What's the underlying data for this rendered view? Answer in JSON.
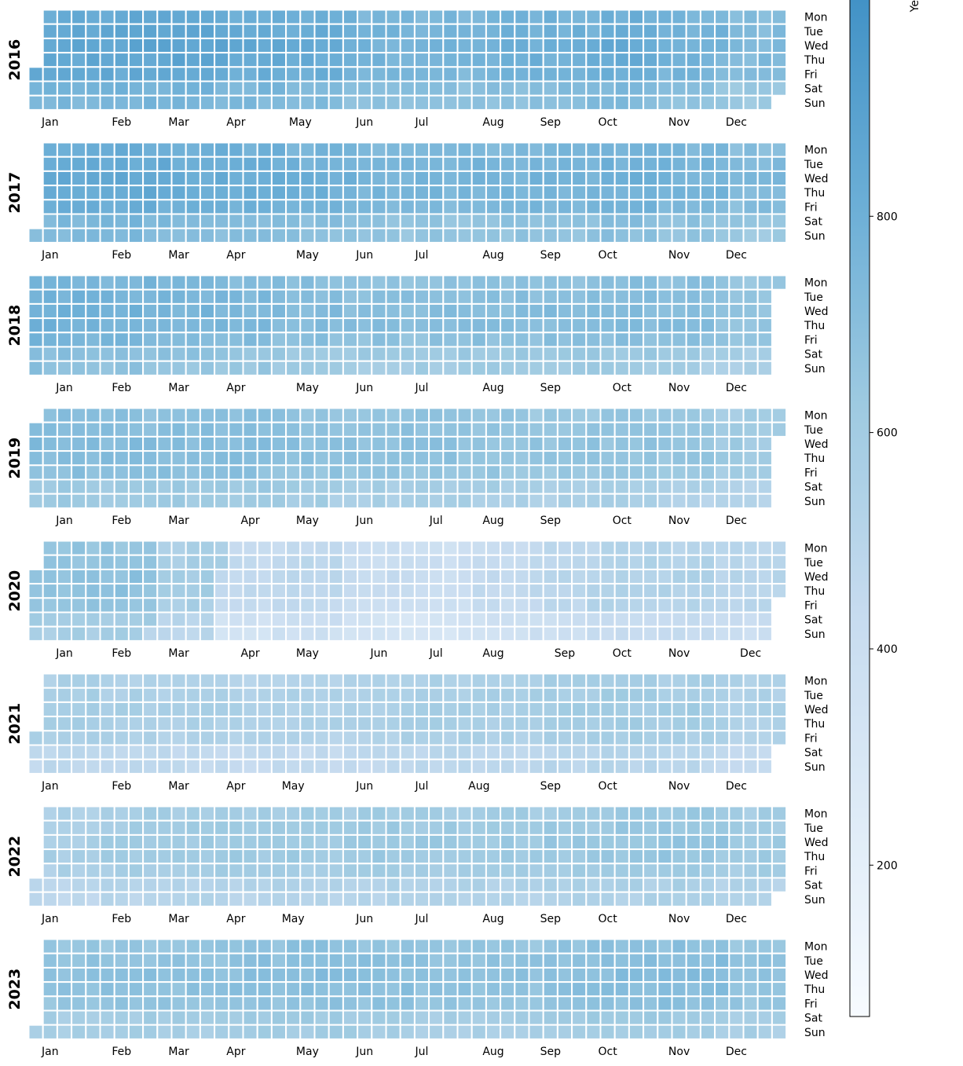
{
  "chart_data": {
    "type": "heatmap",
    "subtype": "calendar",
    "colormap": "Blues",
    "color_range": [
      60,
      1000
    ],
    "colors": [
      "#f7fbff",
      "#deebf7",
      "#c6dbef",
      "#9ecae1",
      "#6baed6",
      "#4292c6"
    ],
    "cell_stroke": "#ffffff",
    "day_labels": [
      "Mon",
      "Tue",
      "Wed",
      "Thu",
      "Fri",
      "Sat",
      "Sun"
    ],
    "colorbar": {
      "label": "Ye",
      "ticks": [
        200,
        400,
        600,
        800
      ],
      "tick_labels": [
        "200",
        "400",
        "600",
        "800"
      ],
      "orientation": "vertical",
      "placement": "right"
    },
    "grid": false,
    "legend": "none",
    "years": [
      {
        "year": 2016,
        "label": "2016",
        "start_weekday": 4,
        "days": 366,
        "monthly_level": [
          820,
          830,
          840,
          810,
          800,
          740,
          740,
          760,
          770,
          800,
          760,
          700
        ],
        "month_ticks": [
          {
            "label": "Jan",
            "week": 1.5
          },
          {
            "label": "Feb",
            "week": 6.5
          },
          {
            "label": "Mar",
            "week": 10.5
          },
          {
            "label": "Apr",
            "week": 14.5
          },
          {
            "label": "May",
            "week": 19
          },
          {
            "label": "Jun",
            "week": 23.5
          },
          {
            "label": "Jul",
            "week": 27.5
          },
          {
            "label": "Aug",
            "week": 32.5
          },
          {
            "label": "Sep",
            "week": 36.5
          },
          {
            "label": "Oct",
            "week": 40.5
          },
          {
            "label": "Nov",
            "week": 45.5
          },
          {
            "label": "Dec",
            "week": 49.5
          }
        ]
      },
      {
        "year": 2017,
        "label": "2017",
        "start_weekday": 6,
        "days": 365,
        "monthly_level": [
          800,
          810,
          790,
          780,
          760,
          730,
          730,
          740,
          740,
          760,
          740,
          700
        ],
        "month_ticks": [
          {
            "label": "Jan",
            "week": 1.5
          },
          {
            "label": "Feb",
            "week": 6.5
          },
          {
            "label": "Mar",
            "week": 10.5
          },
          {
            "label": "Apr",
            "week": 14.5
          },
          {
            "label": "May",
            "week": 19.5
          },
          {
            "label": "Jun",
            "week": 23.5
          },
          {
            "label": "Jul",
            "week": 27.5
          },
          {
            "label": "Aug",
            "week": 32.5
          },
          {
            "label": "Sep",
            "week": 36.5
          },
          {
            "label": "Oct",
            "week": 40.5
          },
          {
            "label": "Nov",
            "week": 45.5
          },
          {
            "label": "Dec",
            "week": 49.5
          }
        ]
      },
      {
        "year": 2018,
        "label": "2018",
        "start_weekday": 0,
        "days": 365,
        "monthly_level": [
          760,
          750,
          730,
          720,
          690,
          670,
          670,
          680,
          680,
          690,
          680,
          640
        ],
        "month_ticks": [
          {
            "label": "Jan",
            "week": 2.5
          },
          {
            "label": "Feb",
            "week": 6.5
          },
          {
            "label": "Mar",
            "week": 10.5
          },
          {
            "label": "Apr",
            "week": 14.5
          },
          {
            "label": "May",
            "week": 19.5
          },
          {
            "label": "Jun",
            "week": 23.5
          },
          {
            "label": "Jul",
            "week": 27.5
          },
          {
            "label": "Aug",
            "week": 32.5
          },
          {
            "label": "Sep",
            "week": 36.5
          },
          {
            "label": "Oct",
            "week": 41.5
          },
          {
            "label": "Nov",
            "week": 45.5
          },
          {
            "label": "Dec",
            "week": 49.5
          }
        ]
      },
      {
        "year": 2019,
        "label": "2019",
        "start_weekday": 1,
        "days": 365,
        "monthly_level": [
          690,
          680,
          680,
          680,
          660,
          640,
          650,
          640,
          620,
          630,
          620,
          580
        ],
        "month_ticks": [
          {
            "label": "Jan",
            "week": 2.5
          },
          {
            "label": "Feb",
            "week": 6.5
          },
          {
            "label": "Mar",
            "week": 10.5
          },
          {
            "label": "Apr",
            "week": 15.5
          },
          {
            "label": "May",
            "week": 19.5
          },
          {
            "label": "Jun",
            "week": 23.5
          },
          {
            "label": "Jul",
            "week": 28.5
          },
          {
            "label": "Aug",
            "week": 32.5
          },
          {
            "label": "Sep",
            "week": 36.5
          },
          {
            "label": "Oct",
            "week": 41.5
          },
          {
            "label": "Nov",
            "week": 45.5
          },
          {
            "label": "Dec",
            "week": 49.5
          }
        ]
      },
      {
        "year": 2020,
        "label": "2020",
        "start_weekday": 2,
        "days": 366,
        "monthly_level": [
          650,
          650,
          560,
          420,
          450,
          390,
          370,
          420,
          460,
          500,
          500,
          470
        ],
        "month_ticks": [
          {
            "label": "Jan",
            "week": 2.5
          },
          {
            "label": "Feb",
            "week": 6.5
          },
          {
            "label": "Mar",
            "week": 10.5
          },
          {
            "label": "Apr",
            "week": 15.5
          },
          {
            "label": "May",
            "week": 19.5
          },
          {
            "label": "Jun",
            "week": 24.5
          },
          {
            "label": "Jul",
            "week": 28.5
          },
          {
            "label": "Aug",
            "week": 32.5
          },
          {
            "label": "Sep",
            "week": 37.5
          },
          {
            "label": "Oct",
            "week": 41.5
          },
          {
            "label": "Nov",
            "week": 45.5
          },
          {
            "label": "Dec",
            "week": 50.5
          }
        ]
      },
      {
        "year": 2021,
        "label": "2021",
        "start_weekday": 4,
        "days": 365,
        "monthly_level": [
          540,
          530,
          520,
          510,
          510,
          520,
          540,
          540,
          560,
          570,
          560,
          520
        ],
        "month_ticks": [
          {
            "label": "Jan",
            "week": 1.5
          },
          {
            "label": "Feb",
            "week": 6.5
          },
          {
            "label": "Mar",
            "week": 10.5
          },
          {
            "label": "Apr",
            "week": 14.5
          },
          {
            "label": "May",
            "week": 18.5
          },
          {
            "label": "Jun",
            "week": 23.5
          },
          {
            "label": "Jul",
            "week": 27.5
          },
          {
            "label": "Aug",
            "week": 31.5
          },
          {
            "label": "Sep",
            "week": 36.5
          },
          {
            "label": "Oct",
            "week": 40.5
          },
          {
            "label": "Nov",
            "week": 45.5
          },
          {
            "label": "Dec",
            "week": 49.5
          }
        ]
      },
      {
        "year": 2022,
        "label": "2022",
        "start_weekday": 5,
        "days": 365,
        "monthly_level": [
          540,
          570,
          580,
          580,
          580,
          590,
          590,
          590,
          600,
          610,
          620,
          580
        ],
        "month_ticks": [
          {
            "label": "Jan",
            "week": 1.5
          },
          {
            "label": "Feb",
            "week": 6.5
          },
          {
            "label": "Mar",
            "week": 10.5
          },
          {
            "label": "Apr",
            "week": 14.5
          },
          {
            "label": "May",
            "week": 18.5
          },
          {
            "label": "Jun",
            "week": 23.5
          },
          {
            "label": "Jul",
            "week": 27.5
          },
          {
            "label": "Aug",
            "week": 32.5
          },
          {
            "label": "Sep",
            "week": 36.5
          },
          {
            "label": "Oct",
            "week": 40.5
          },
          {
            "label": "Nov",
            "week": 45.5
          },
          {
            "label": "Dec",
            "week": 49.5
          }
        ]
      },
      {
        "year": 2023,
        "label": "2023",
        "start_weekday": 6,
        "days": 365,
        "monthly_level": [
          640,
          650,
          650,
          660,
          670,
          660,
          640,
          640,
          660,
          670,
          680,
          640
        ],
        "month_ticks": [
          {
            "label": "Jan",
            "week": 1.5
          },
          {
            "label": "Feb",
            "week": 6.5
          },
          {
            "label": "Mar",
            "week": 10.5
          },
          {
            "label": "Apr",
            "week": 14.5
          },
          {
            "label": "May",
            "week": 19.5
          },
          {
            "label": "Jun",
            "week": 23.5
          },
          {
            "label": "Jul",
            "week": 27.5
          },
          {
            "label": "Aug",
            "week": 32.5
          },
          {
            "label": "Sep",
            "week": 36.5
          },
          {
            "label": "Oct",
            "week": 40.5
          },
          {
            "label": "Nov",
            "week": 45.5
          },
          {
            "label": "Dec",
            "week": 49.5
          }
        ]
      }
    ]
  }
}
